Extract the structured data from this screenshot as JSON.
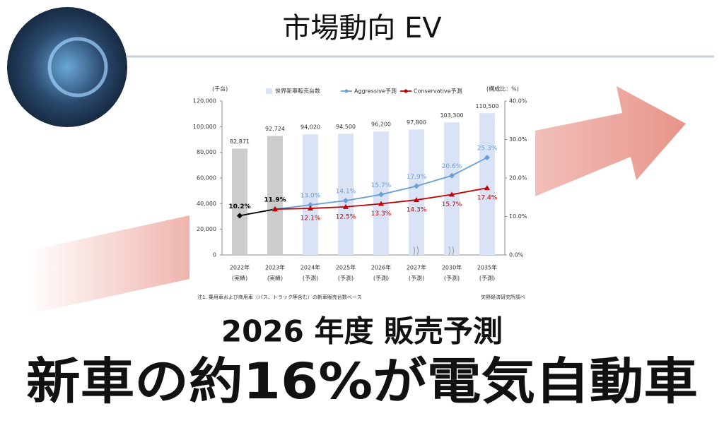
{
  "header": {
    "title": "市場動向 EV"
  },
  "headline": {
    "subtitle": "2026 年度 販売予測",
    "main": "新車の約16%が電気自動車"
  },
  "chart_data": {
    "type": "bar",
    "y_unit_label": "(千台)",
    "y2_unit_label": "(構成比：%)",
    "categories": [
      "2022年",
      "2023年",
      "2024年",
      "2025年",
      "2026年",
      "2027年",
      "2030年",
      "2035年"
    ],
    "category_sublabels": [
      "(実績)",
      "(実績)",
      "(予測)",
      "(予測)",
      "(予測)",
      "(予測)",
      "(予測)",
      "(予測)"
    ],
    "bars": {
      "name": "世界新車販売台数",
      "colors": [
        "#cccccc",
        "#cccccc",
        "#dae3f5",
        "#dae3f5",
        "#dae3f5",
        "#dae3f5",
        "#dae3f5",
        "#dae3f5"
      ],
      "legend_color": "#dae3f5",
      "values": [
        82871,
        92724,
        94020,
        94500,
        96200,
        97800,
        103300,
        110500
      ],
      "value_labels": [
        "82,871",
        "92,724",
        "94,020",
        "94,500",
        "96,200",
        "97,800",
        "103,300",
        "110,500"
      ]
    },
    "series": [
      {
        "color": "#000000",
        "axis": "y2",
        "marker": "diamond",
        "values": [
          10.2,
          11.9,
          null,
          null,
          null,
          null,
          null,
          null
        ],
        "value_labels": [
          "10.2%",
          "11.9%",
          null,
          null,
          null,
          null,
          null,
          null
        ]
      },
      {
        "name": "Aggressive予測",
        "color": "#6a9fd4",
        "axis": "y2",
        "marker": "diamond",
        "values": [
          null,
          11.9,
          13.0,
          14.1,
          15.7,
          17.9,
          20.6,
          25.3
        ],
        "value_labels": [
          null,
          null,
          "13.0%",
          "14.1%",
          "15.7%",
          "17.9%",
          "20.6%",
          "25.3%"
        ]
      },
      {
        "name": "Conservative予測",
        "color": "#c00000",
        "axis": "y2",
        "marker": "triangle",
        "values": [
          null,
          11.9,
          12.1,
          12.5,
          13.3,
          14.3,
          15.7,
          17.4
        ],
        "value_labels": [
          null,
          null,
          "12.1%",
          "12.5%",
          "13.3%",
          "14.3%",
          "15.7%",
          "17.4%"
        ]
      }
    ],
    "ylim": [
      0,
      120000
    ],
    "yticks": [
      0,
      {
        "value": 20000,
        "label": "20,000"
      },
      {
        "value": 40000,
        "label": "40,000"
      },
      {
        "value": 60000,
        "label": "60,000"
      },
      {
        "value": 80000,
        "label": "80,000"
      },
      {
        "value": 100000,
        "label": "100,000"
      },
      {
        "value": 120000,
        "label": "120,000"
      }
    ],
    "y2lim": [
      0,
      40
    ],
    "y2ticks": [
      {
        "value": 0,
        "label": "0.0%"
      },
      {
        "value": 10,
        "label": "10.0%"
      },
      {
        "value": 20,
        "label": "20.0%"
      },
      {
        "value": 30,
        "label": "30.0%"
      },
      {
        "value": 40,
        "label": "40.0%"
      }
    ],
    "footnote": "注1. 乗用車および商用車（バス、トラック等含む）の新車販売台数ベース",
    "source": "矢野経済研究所調べ"
  }
}
